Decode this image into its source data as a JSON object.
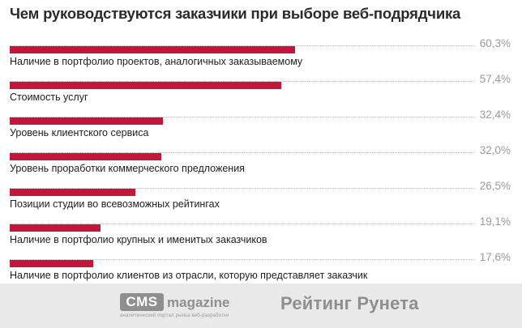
{
  "chart_data": {
    "type": "bar",
    "orientation": "horizontal",
    "title": "Чем руководствуются заказчики при выборе веб-подрядчика",
    "unit": "%",
    "xlim": [
      0,
      100
    ],
    "categories": [
      "Наличие в портфолио проектов, аналогичных заказываемому",
      "Стоимость услуг",
      "Уровень клиентского сервиса",
      "Уровень проработки коммерческого предложения",
      "Позиции студии во всевозможных рейтингах",
      "Наличие в портфолио крупных и именитых заказчиков",
      "Наличие в портфолио клиентов из отрасли, которую представляет заказчик"
    ],
    "values": [
      60.3,
      57.4,
      32.4,
      32.0,
      26.5,
      19.1,
      17.6
    ],
    "value_labels": [
      "60,3%",
      "57,4%",
      "32,4%",
      "32,0%",
      "26,5%",
      "19,1%",
      "17,6%"
    ],
    "bar_color": "#c4163b",
    "grid": false,
    "legend": "none"
  },
  "footer": {
    "cms_logo_box": "CMS",
    "cms_logo_word": "magazine",
    "cms_tagline": "аналитический портал рынка веб-разработки",
    "rating_logo": "Рейтинг Рунета",
    "background": "#e9e9e9"
  }
}
